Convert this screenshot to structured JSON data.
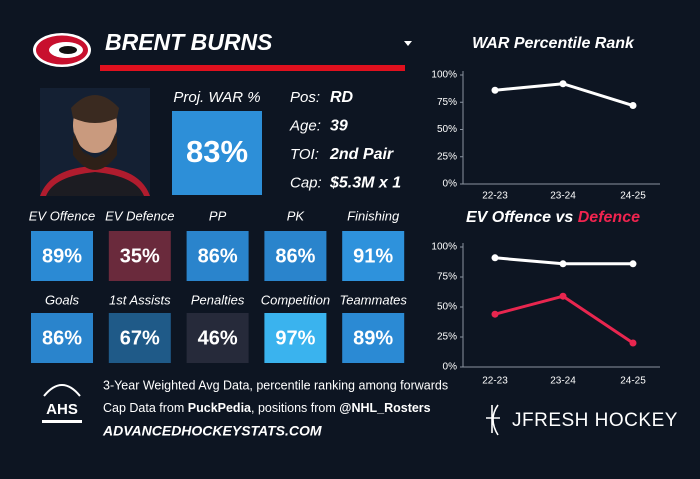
{
  "header": {
    "name": "BRENT BURNS"
  },
  "summary": {
    "label": "Proj. WAR %",
    "value": "83%",
    "color": "#2d8fd8"
  },
  "bio": [
    {
      "label": "Pos:",
      "value": "RD"
    },
    {
      "label": "Age:",
      "value": "39"
    },
    {
      "label": "TOI:",
      "value": "2nd Pair"
    },
    {
      "label": "Cap:",
      "value": "$5.3M x 1"
    }
  ],
  "tiles": [
    {
      "label": "EV Offence",
      "value": "89%",
      "color": "#2b8ad4"
    },
    {
      "label": "EV Defence",
      "value": "35%",
      "color": "#6a2a3c"
    },
    {
      "label": "PP",
      "value": "86%",
      "color": "#2a84cc"
    },
    {
      "label": "PK",
      "value": "86%",
      "color": "#2a84cc"
    },
    {
      "label": "Finishing",
      "value": "91%",
      "color": "#2e92dc"
    },
    {
      "label": "Goals",
      "value": "86%",
      "color": "#2a84cc"
    },
    {
      "label": "1st Assists",
      "value": "67%",
      "color": "#1f5a88"
    },
    {
      "label": "Penalties",
      "value": "46%",
      "color": "#262a3a"
    },
    {
      "label": "Competition",
      "value": "97%",
      "color": "#3ab3ee"
    },
    {
      "label": "Teammates",
      "value": "89%",
      "color": "#2b8ad4"
    }
  ],
  "footer": {
    "logo": "AHS",
    "note": "3-Year Weighted Avg Data, percentile ranking among forwards",
    "credit": [
      "Cap Data from",
      "PuckPedia",
      ", positions from",
      "@NHL_Rosters"
    ],
    "site": "ADVANCEDHOCKEYSTATS.COM",
    "brand": "JFRESH HOCKEY"
  },
  "chart_data": [
    {
      "type": "line",
      "title": "WAR Percentile Rank",
      "categories": [
        "22-23",
        "23-24",
        "24-25"
      ],
      "values": [
        86,
        92,
        72
      ],
      "color": "#ffffff",
      "ylim": [
        0,
        100
      ],
      "yticks": [
        {
          "value": 0,
          "label": "0%"
        },
        {
          "value": 25,
          "label": "25%"
        },
        {
          "value": 50,
          "label": "50%"
        },
        {
          "value": 75,
          "label": "75%"
        },
        {
          "value": 100,
          "label": "100%"
        }
      ]
    },
    {
      "type": "line",
      "title": "EV Offence vs",
      "title_highlight": "Defence",
      "highlight_color": "#f0244f",
      "categories": [
        "22-23",
        "23-24",
        "24-25"
      ],
      "series": [
        {
          "color": "#ffffff",
          "values": [
            91,
            86,
            86
          ]
        },
        {
          "color": "#e8264f",
          "values": [
            44,
            59,
            20
          ]
        }
      ],
      "ylim": [
        0,
        100
      ],
      "yticks": [
        {
          "value": 0,
          "label": "0%"
        },
        {
          "value": 25,
          "label": "25%"
        },
        {
          "value": 50,
          "label": "50%"
        },
        {
          "value": 75,
          "label": "75%"
        },
        {
          "value": 100,
          "label": "100%"
        }
      ]
    }
  ]
}
